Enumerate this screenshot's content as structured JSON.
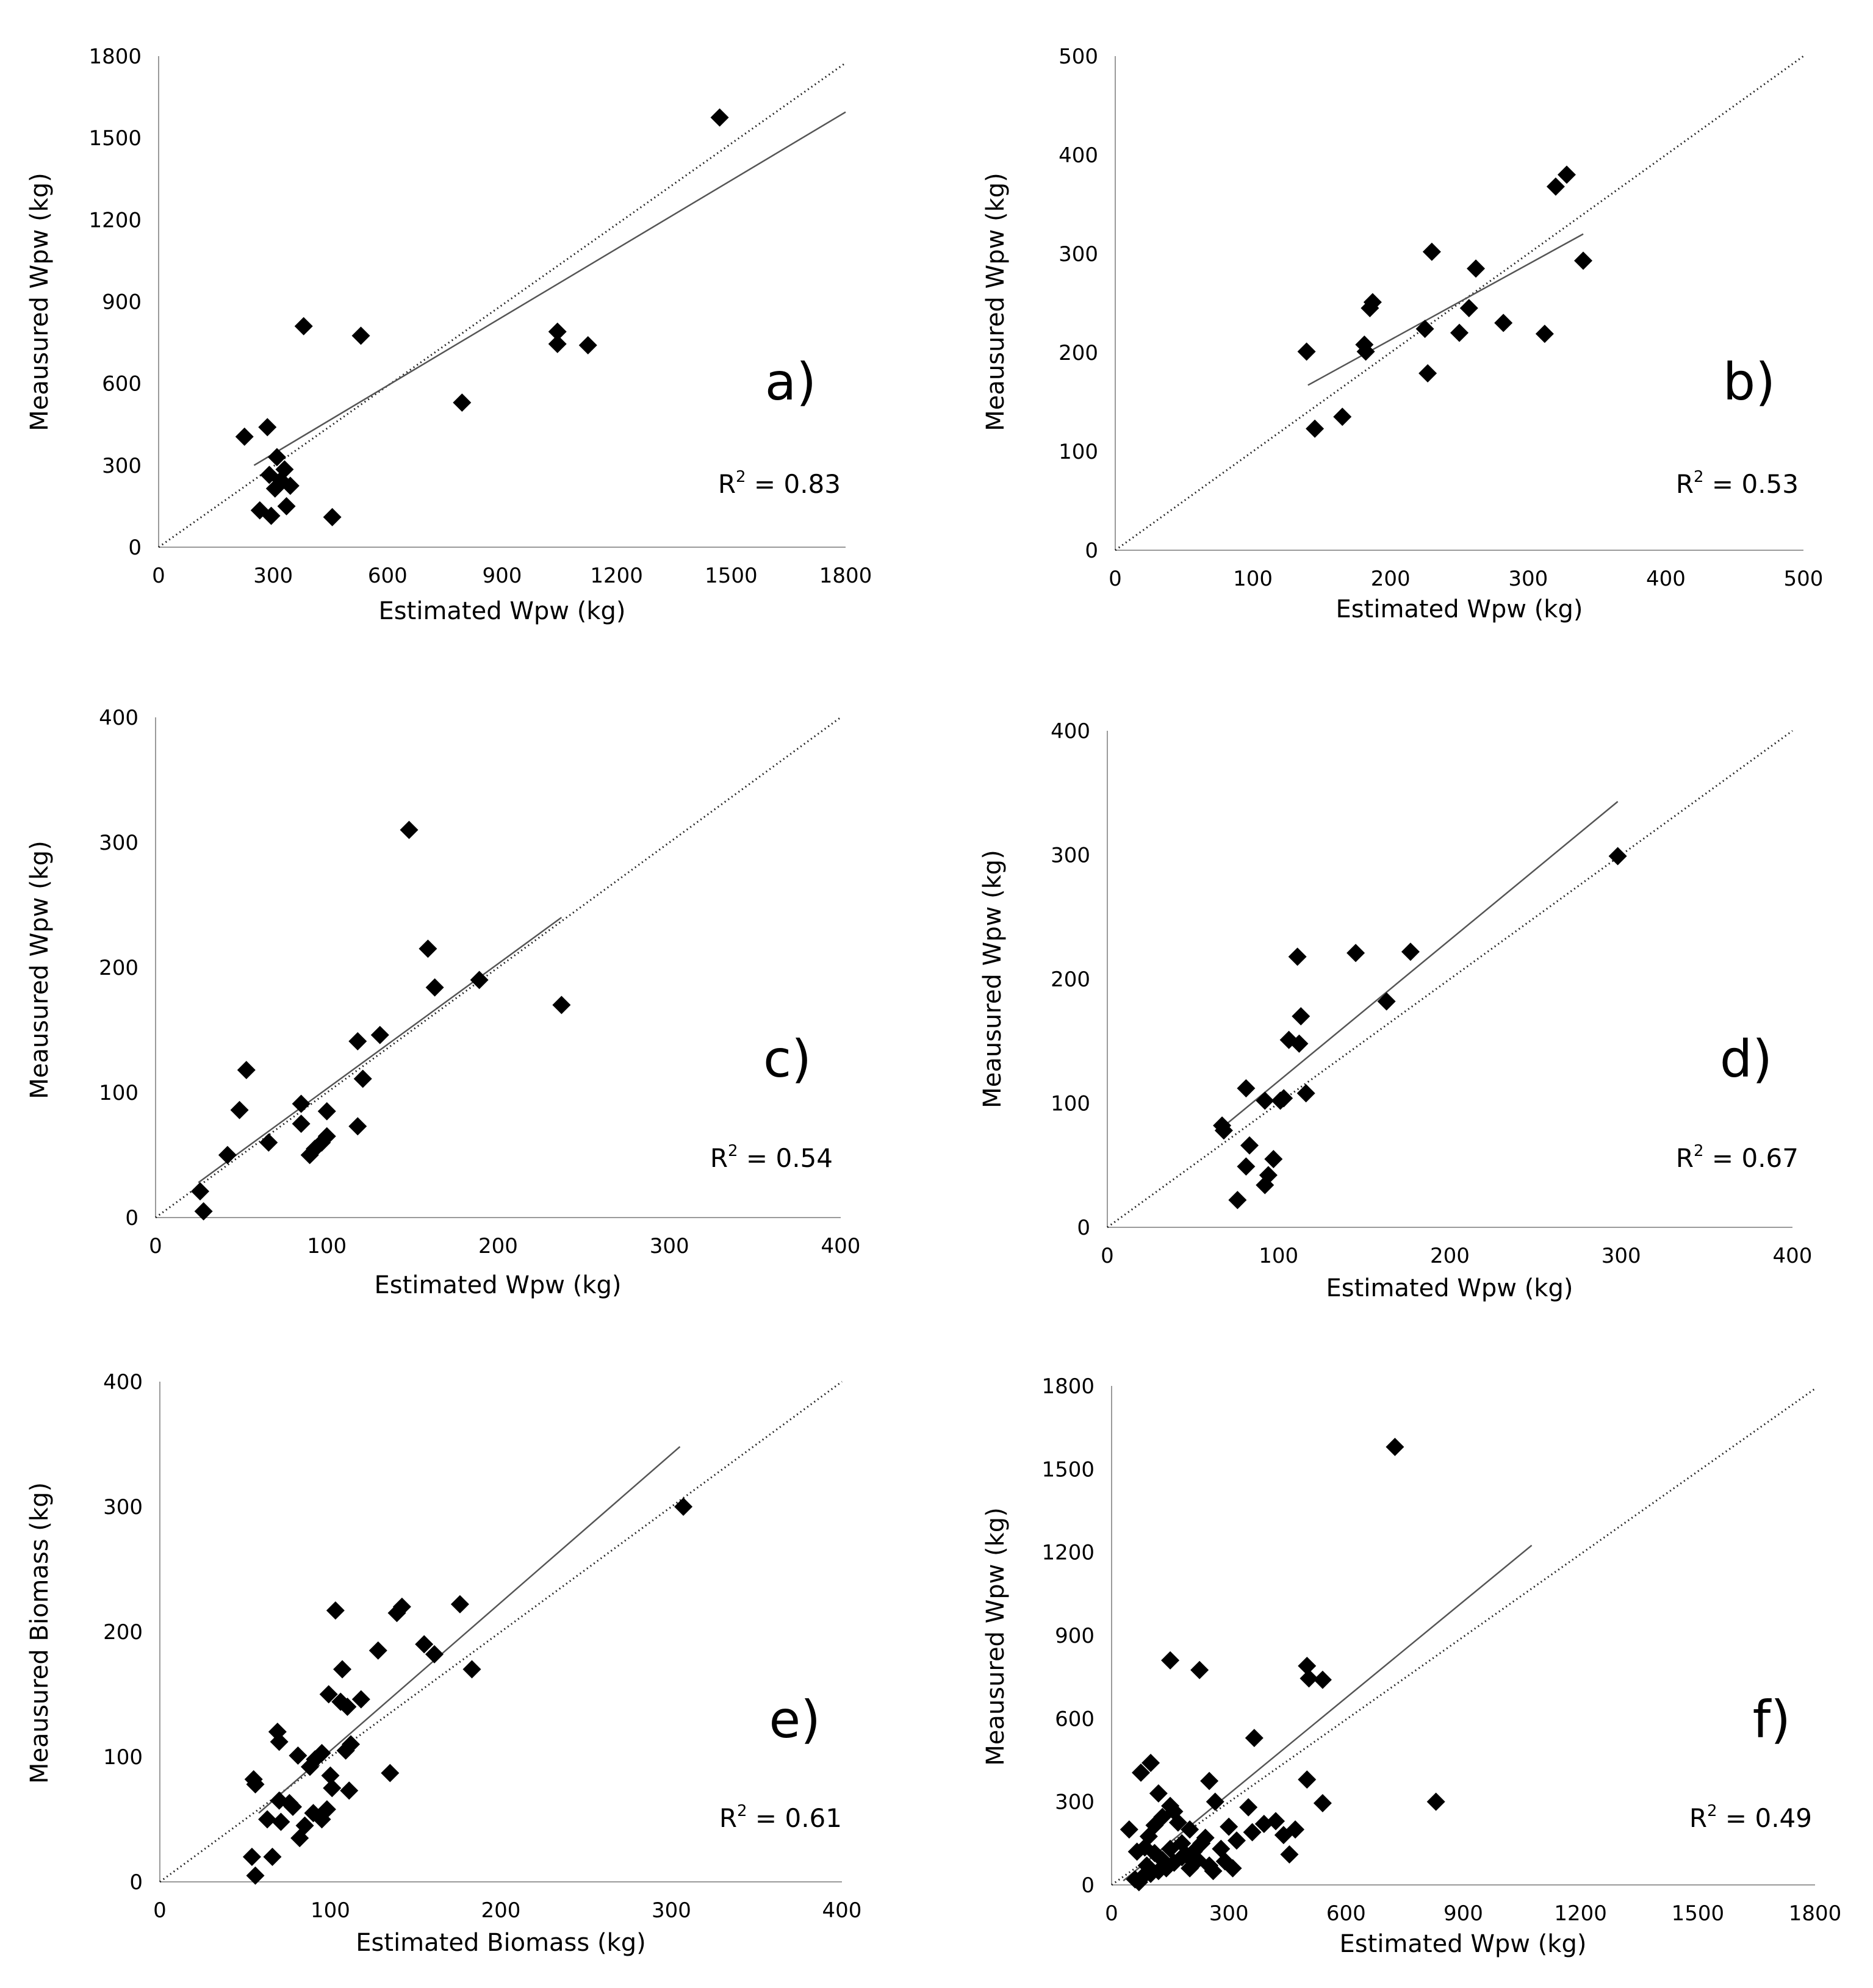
{
  "chart_data": [
    {
      "type": "scatter",
      "panel": "a)",
      "xlabel": "Estimated Wpw (kg)",
      "ylabel": "Meausured Wpw (kg)",
      "xlim": [
        0,
        1800
      ],
      "ylim": [
        0,
        1800
      ],
      "xticks": [
        0,
        300,
        600,
        900,
        1200,
        1500,
        1800
      ],
      "yticks": [
        0,
        300,
        600,
        900,
        1200,
        1500,
        1800
      ],
      "r2_label": "R",
      "r2_sup": "2",
      "r2_value": " = 0.83",
      "identity_line": [
        [
          0,
          0
        ],
        [
          1800,
          1775
        ]
      ],
      "fit_line": [
        [
          250,
          300
        ],
        [
          1800,
          1595
        ]
      ],
      "points": [
        [
          1470,
          1575
        ],
        [
          380,
          810
        ],
        [
          530,
          775
        ],
        [
          1045,
          790
        ],
        [
          1045,
          745
        ],
        [
          1125,
          740
        ],
        [
          795,
          530
        ],
        [
          225,
          405
        ],
        [
          285,
          440
        ],
        [
          310,
          330
        ],
        [
          330,
          285
        ],
        [
          290,
          265
        ],
        [
          320,
          245
        ],
        [
          345,
          225
        ],
        [
          305,
          215
        ],
        [
          335,
          150
        ],
        [
          265,
          135
        ],
        [
          295,
          115
        ],
        [
          455,
          110
        ]
      ]
    },
    {
      "type": "scatter",
      "panel": "b)",
      "xlabel": "Estimated Wpw (kg)",
      "ylabel": "Meausured Wpw (kg)",
      "xlim": [
        0,
        500
      ],
      "ylim": [
        0,
        500
      ],
      "xticks": [
        0,
        100,
        200,
        300,
        400,
        500
      ],
      "yticks": [
        0,
        100,
        200,
        300,
        400,
        500
      ],
      "r2_label": "R",
      "r2_sup": "2",
      "r2_value": " = 0.53",
      "identity_line": [
        [
          0,
          0
        ],
        [
          500,
          500
        ]
      ],
      "fit_line": [
        [
          140,
          167
        ],
        [
          340,
          320
        ]
      ],
      "points": [
        [
          328,
          380
        ],
        [
          320,
          368
        ],
        [
          230,
          302
        ],
        [
          262,
          285
        ],
        [
          340,
          293
        ],
        [
          187,
          251
        ],
        [
          185,
          245
        ],
        [
          257,
          245
        ],
        [
          181,
          208
        ],
        [
          182,
          201
        ],
        [
          225,
          224
        ],
        [
          250,
          220
        ],
        [
          282,
          230
        ],
        [
          312,
          219
        ],
        [
          139,
          201
        ],
        [
          227,
          179
        ],
        [
          165,
          135
        ],
        [
          145,
          123
        ]
      ]
    },
    {
      "type": "scatter",
      "panel": "c)",
      "xlabel": "Estimated Wpw (kg)",
      "ylabel": "Meausured Wpw (kg)",
      "xlim": [
        0,
        400
      ],
      "ylim": [
        0,
        400
      ],
      "xticks": [
        0,
        100,
        200,
        300,
        400
      ],
      "yticks": [
        0,
        100,
        200,
        300,
        400
      ],
      "r2_label": "R",
      "r2_sup": "2",
      "r2_value": " = 0.54",
      "identity_line": [
        [
          0,
          0
        ],
        [
          400,
          400
        ]
      ],
      "fit_line": [
        [
          25,
          28
        ],
        [
          237,
          240
        ]
      ],
      "points": [
        [
          148,
          310
        ],
        [
          159,
          215
        ],
        [
          163,
          184
        ],
        [
          189,
          190
        ],
        [
          237,
          170
        ],
        [
          131,
          146
        ],
        [
          118,
          141
        ],
        [
          121,
          111
        ],
        [
          118,
          73
        ],
        [
          53,
          118
        ],
        [
          49,
          86
        ],
        [
          85,
          91
        ],
        [
          85,
          75
        ],
        [
          100,
          85
        ],
        [
          66,
          60
        ],
        [
          42,
          50
        ],
        [
          100,
          65
        ],
        [
          97,
          60
        ],
        [
          93,
          55
        ],
        [
          90,
          50
        ],
        [
          26,
          21
        ],
        [
          28,
          5
        ]
      ]
    },
    {
      "type": "scatter",
      "panel": "d)",
      "xlabel": "Estimated Wpw (kg)",
      "ylabel": "Meausured Wpw (kg)",
      "xlim": [
        0,
        400
      ],
      "ylim": [
        0,
        400
      ],
      "xticks": [
        0,
        100,
        200,
        300,
        400
      ],
      "yticks": [
        0,
        100,
        200,
        300,
        400
      ],
      "r2_label": "R",
      "r2_sup": "2",
      "r2_value": " = 0.67",
      "identity_line": [
        [
          0,
          0
        ],
        [
          400,
          400
        ]
      ],
      "fit_line": [
        [
          65,
          78
        ],
        [
          298,
          343
        ]
      ],
      "points": [
        [
          298,
          299
        ],
        [
          145,
          221
        ],
        [
          177,
          222
        ],
        [
          111,
          218
        ],
        [
          163,
          182
        ],
        [
          113,
          170
        ],
        [
          106,
          151
        ],
        [
          112,
          148
        ],
        [
          81,
          112
        ],
        [
          92,
          102
        ],
        [
          101,
          102
        ],
        [
          103,
          104
        ],
        [
          116,
          108
        ],
        [
          67,
          82
        ],
        [
          68,
          78
        ],
        [
          83,
          66
        ],
        [
          97,
          55
        ],
        [
          81,
          49
        ],
        [
          94,
          42
        ],
        [
          92,
          34
        ],
        [
          76,
          22
        ]
      ]
    },
    {
      "type": "scatter",
      "panel": "e)",
      "xlabel": "Estimated Biomass (kg)",
      "ylabel": "Meausured Biomass (kg)",
      "xlim": [
        0,
        400
      ],
      "ylim": [
        0,
        400
      ],
      "xticks": [
        0,
        100,
        200,
        300,
        400
      ],
      "yticks": [
        0,
        100,
        200,
        300,
        400
      ],
      "r2_label": "R",
      "r2_sup": "2",
      "r2_value": " = 0.61",
      "identity_line": [
        [
          0,
          0
        ],
        [
          400,
          400
        ]
      ],
      "fit_line": [
        [
          58,
          55
        ],
        [
          305,
          348
        ]
      ],
      "points": [
        [
          307,
          300
        ],
        [
          176,
          222
        ],
        [
          142,
          220
        ],
        [
          139,
          215
        ],
        [
          103,
          217
        ],
        [
          155,
          190
        ],
        [
          161,
          182
        ],
        [
          128,
          185
        ],
        [
          183,
          170
        ],
        [
          107,
          170
        ],
        [
          99,
          150
        ],
        [
          106,
          144
        ],
        [
          110,
          140
        ],
        [
          118,
          146
        ],
        [
          69,
          120
        ],
        [
          70,
          112
        ],
        [
          112,
          110
        ],
        [
          109,
          105
        ],
        [
          55,
          82
        ],
        [
          56,
          78
        ],
        [
          81,
          101
        ],
        [
          91,
          98
        ],
        [
          95,
          103
        ],
        [
          88,
          92
        ],
        [
          100,
          85
        ],
        [
          135,
          87
        ],
        [
          70,
          65
        ],
        [
          76,
          63
        ],
        [
          78,
          60
        ],
        [
          101,
          75
        ],
        [
          111,
          73
        ],
        [
          90,
          55
        ],
        [
          98,
          58
        ],
        [
          85,
          45
        ],
        [
          95,
          50
        ],
        [
          63,
          50
        ],
        [
          71,
          48
        ],
        [
          82,
          35
        ],
        [
          54,
          20
        ],
        [
          66,
          20
        ],
        [
          56,
          5
        ]
      ]
    },
    {
      "type": "scatter",
      "panel": "f)",
      "xlabel": "Estimated Wpw (kg)",
      "ylabel": "Meausured Wpw (kg)",
      "xlim": [
        0,
        1800
      ],
      "ylim": [
        0,
        1800
      ],
      "xticks": [
        0,
        300,
        600,
        900,
        1200,
        1500,
        1800
      ],
      "yticks": [
        0,
        300,
        600,
        900,
        1200,
        1500,
        1800
      ],
      "r2_label": "R",
      "r2_sup": "2",
      "r2_value": " = 0.49",
      "identity_line": [
        [
          0,
          0
        ],
        [
          1800,
          1790
        ]
      ],
      "fit_line": [
        [
          30,
          15
        ],
        [
          1075,
          1225
        ]
      ],
      "points": [
        [
          725,
          1580
        ],
        [
          150,
          810
        ],
        [
          225,
          775
        ],
        [
          500,
          790
        ],
        [
          505,
          745
        ],
        [
          540,
          740
        ],
        [
          365,
          530
        ],
        [
          75,
          405
        ],
        [
          100,
          440
        ],
        [
          120,
          330
        ],
        [
          150,
          285
        ],
        [
          160,
          265
        ],
        [
          130,
          245
        ],
        [
          170,
          225
        ],
        [
          110,
          215
        ],
        [
          180,
          150
        ],
        [
          85,
          135
        ],
        [
          110,
          115
        ],
        [
          455,
          110
        ],
        [
          500,
          380
        ],
        [
          830,
          300
        ],
        [
          540,
          295
        ],
        [
          250,
          375
        ],
        [
          265,
          300
        ],
        [
          350,
          280
        ],
        [
          420,
          230
        ],
        [
          390,
          220
        ],
        [
          470,
          200
        ],
        [
          440,
          180
        ],
        [
          360,
          190
        ],
        [
          300,
          210
        ],
        [
          320,
          160
        ],
        [
          280,
          130
        ],
        [
          240,
          170
        ],
        [
          200,
          200
        ],
        [
          230,
          150
        ],
        [
          210,
          120
        ],
        [
          180,
          100
        ],
        [
          160,
          80
        ],
        [
          140,
          60
        ],
        [
          120,
          50
        ],
        [
          100,
          40
        ],
        [
          80,
          30
        ],
        [
          60,
          20
        ],
        [
          70,
          10
        ],
        [
          90,
          70
        ],
        [
          130,
          90
        ],
        [
          150,
          130
        ],
        [
          190,
          110
        ],
        [
          220,
          90
        ],
        [
          250,
          70
        ],
        [
          290,
          85
        ],
        [
          310,
          60
        ],
        [
          95,
          175
        ],
        [
          65,
          120
        ],
        [
          45,
          200
        ],
        [
          200,
          60
        ],
        [
          260,
          50
        ]
      ]
    }
  ]
}
